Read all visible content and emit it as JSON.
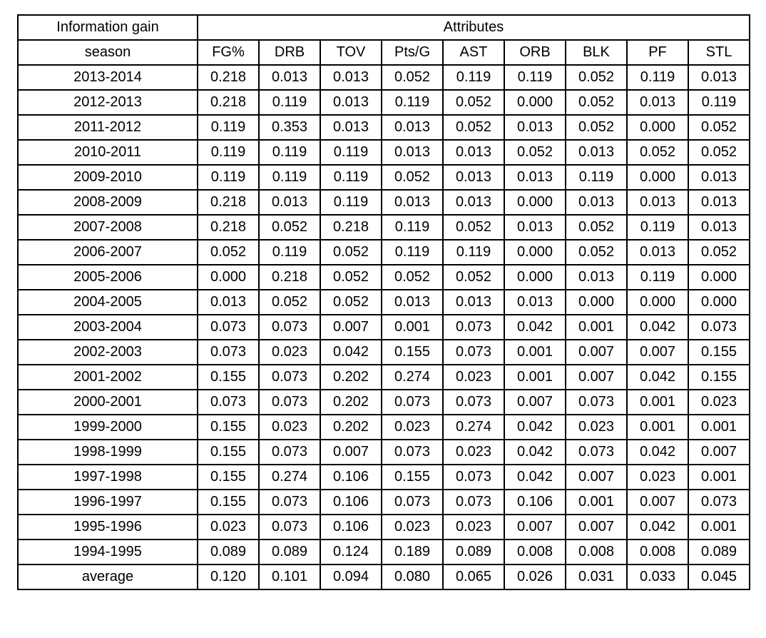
{
  "table": {
    "corner_label": "Information gain",
    "group_label": "Attributes",
    "row_header_label": "season",
    "columns": [
      "FG%",
      "DRB",
      "TOV",
      "Pts/G",
      "AST",
      "ORB",
      "BLK",
      "PF",
      "STL"
    ],
    "rows": [
      {
        "season": "2013-2014",
        "values": [
          "0.218",
          "0.013",
          "0.013",
          "0.052",
          "0.119",
          "0.119",
          "0.052",
          "0.119",
          "0.013"
        ]
      },
      {
        "season": "2012-2013",
        "values": [
          "0.218",
          "0.119",
          "0.013",
          "0.119",
          "0.052",
          "0.000",
          "0.052",
          "0.013",
          "0.119"
        ]
      },
      {
        "season": "2011-2012",
        "values": [
          "0.119",
          "0.353",
          "0.013",
          "0.013",
          "0.052",
          "0.013",
          "0.052",
          "0.000",
          "0.052"
        ]
      },
      {
        "season": "2010-2011",
        "values": [
          "0.119",
          "0.119",
          "0.119",
          "0.013",
          "0.013",
          "0.052",
          "0.013",
          "0.052",
          "0.052"
        ]
      },
      {
        "season": "2009-2010",
        "values": [
          "0.119",
          "0.119",
          "0.119",
          "0.052",
          "0.013",
          "0.013",
          "0.119",
          "0.000",
          "0.013"
        ]
      },
      {
        "season": "2008-2009",
        "values": [
          "0.218",
          "0.013",
          "0.119",
          "0.013",
          "0.013",
          "0.000",
          "0.013",
          "0.013",
          "0.013"
        ]
      },
      {
        "season": "2007-2008",
        "values": [
          "0.218",
          "0.052",
          "0.218",
          "0.119",
          "0.052",
          "0.013",
          "0.052",
          "0.119",
          "0.013"
        ]
      },
      {
        "season": "2006-2007",
        "values": [
          "0.052",
          "0.119",
          "0.052",
          "0.119",
          "0.119",
          "0.000",
          "0.052",
          "0.013",
          "0.052"
        ]
      },
      {
        "season": "2005-2006",
        "values": [
          "0.000",
          "0.218",
          "0.052",
          "0.052",
          "0.052",
          "0.000",
          "0.013",
          "0.119",
          "0.000"
        ]
      },
      {
        "season": "2004-2005",
        "values": [
          "0.013",
          "0.052",
          "0.052",
          "0.013",
          "0.013",
          "0.013",
          "0.000",
          "0.000",
          "0.000"
        ]
      },
      {
        "season": "2003-2004",
        "values": [
          "0.073",
          "0.073",
          "0.007",
          "0.001",
          "0.073",
          "0.042",
          "0.001",
          "0.042",
          "0.073"
        ]
      },
      {
        "season": "2002-2003",
        "values": [
          "0.073",
          "0.023",
          "0.042",
          "0.155",
          "0.073",
          "0.001",
          "0.007",
          "0.007",
          "0.155"
        ]
      },
      {
        "season": "2001-2002",
        "values": [
          "0.155",
          "0.073",
          "0.202",
          "0.274",
          "0.023",
          "0.001",
          "0.007",
          "0.042",
          "0.155"
        ]
      },
      {
        "season": "2000-2001",
        "values": [
          "0.073",
          "0.073",
          "0.202",
          "0.073",
          "0.073",
          "0.007",
          "0.073",
          "0.001",
          "0.023"
        ]
      },
      {
        "season": "1999-2000",
        "values": [
          "0.155",
          "0.023",
          "0.202",
          "0.023",
          "0.274",
          "0.042",
          "0.023",
          "0.001",
          "0.001"
        ]
      },
      {
        "season": "1998-1999",
        "values": [
          "0.155",
          "0.073",
          "0.007",
          "0.073",
          "0.023",
          "0.042",
          "0.073",
          "0.042",
          "0.007"
        ]
      },
      {
        "season": "1997-1998",
        "values": [
          "0.155",
          "0.274",
          "0.106",
          "0.155",
          "0.073",
          "0.042",
          "0.007",
          "0.023",
          "0.001"
        ]
      },
      {
        "season": "1996-1997",
        "values": [
          "0.155",
          "0.073",
          "0.106",
          "0.073",
          "0.073",
          "0.106",
          "0.001",
          "0.007",
          "0.073"
        ]
      },
      {
        "season": "1995-1996",
        "values": [
          "0.023",
          "0.073",
          "0.106",
          "0.023",
          "0.023",
          "0.007",
          "0.007",
          "0.042",
          "0.001"
        ]
      },
      {
        "season": "1994-1995",
        "values": [
          "0.089",
          "0.089",
          "0.124",
          "0.189",
          "0.089",
          "0.008",
          "0.008",
          "0.008",
          "0.089"
        ]
      },
      {
        "season": "average",
        "values": [
          "0.120",
          "0.101",
          "0.094",
          "0.080",
          "0.065",
          "0.026",
          "0.031",
          "0.033",
          "0.045"
        ]
      }
    ]
  }
}
